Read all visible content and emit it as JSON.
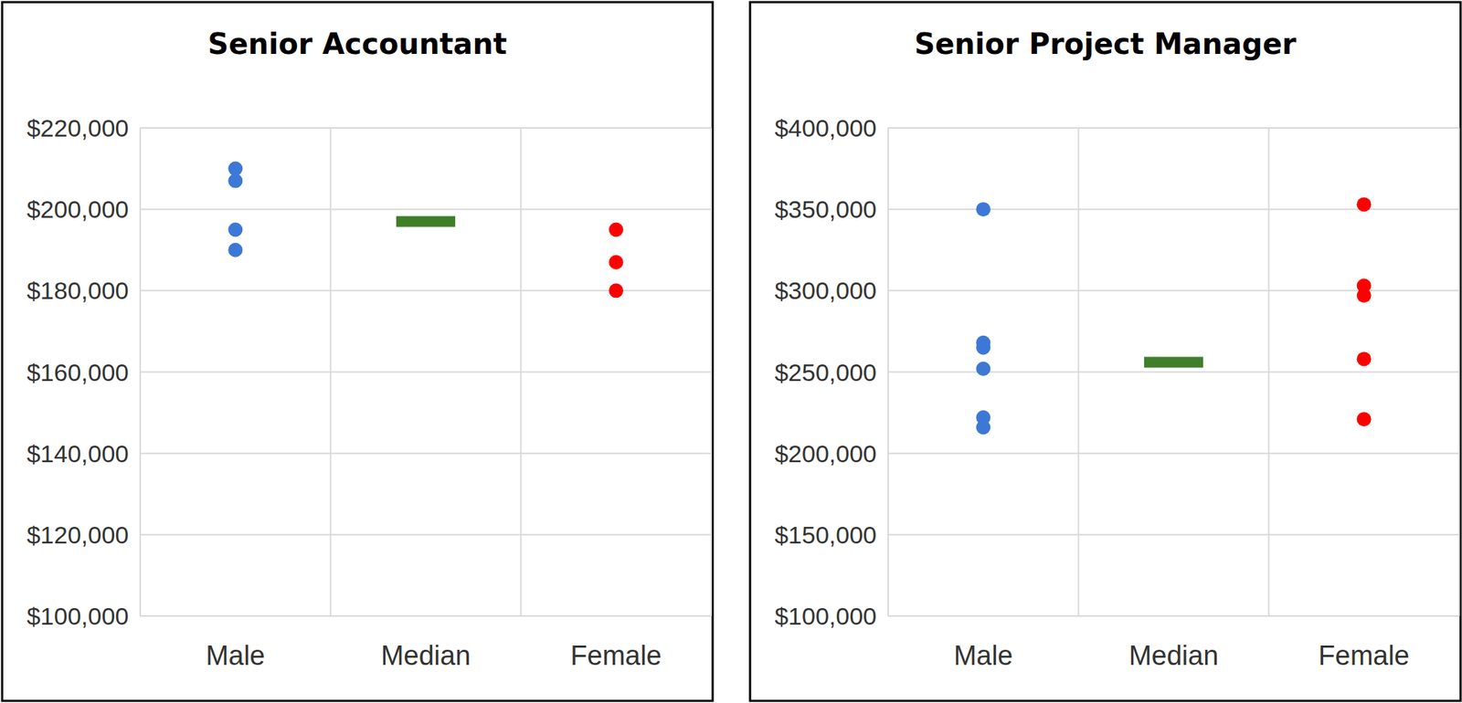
{
  "chart_data": [
    {
      "type": "strip",
      "title": "Senior Accountant",
      "series": [
        {
          "name": "Male",
          "color": "#3d78d6",
          "marker": "circle",
          "values": [
            210000,
            207000,
            195000,
            190000
          ]
        },
        {
          "name": "Median",
          "color": "#3f7f2a",
          "marker": "dash",
          "values": [
            197000
          ]
        },
        {
          "name": "Female",
          "color": "#ff0000",
          "marker": "circle",
          "values": [
            195000,
            187000,
            180000
          ]
        }
      ],
      "ylim": [
        100000,
        220000
      ],
      "yticks": [
        {
          "value": 100000,
          "label": "$100,000"
        },
        {
          "value": 120000,
          "label": "$120,000"
        },
        {
          "value": 140000,
          "label": "$140,000"
        },
        {
          "value": 160000,
          "label": "$160,000"
        },
        {
          "value": 180000,
          "label": "$180,000"
        },
        {
          "value": 200000,
          "label": "$200,000"
        },
        {
          "value": 220000,
          "label": "$220,000"
        }
      ],
      "grid": true
    },
    {
      "type": "strip",
      "title": "Senior Project Manager",
      "series": [
        {
          "name": "Male",
          "color": "#3d78d6",
          "marker": "circle",
          "values": [
            350000,
            268000,
            265000,
            252000,
            222000,
            216000
          ]
        },
        {
          "name": "Median",
          "color": "#3f7f2a",
          "marker": "dash",
          "values": [
            256000
          ]
        },
        {
          "name": "Female",
          "color": "#ff0000",
          "marker": "circle",
          "values": [
            353000,
            303000,
            297000,
            258000,
            221000
          ]
        }
      ],
      "ylim": [
        100000,
        400000
      ],
      "yticks": [
        {
          "value": 100000,
          "label": "$100,000"
        },
        {
          "value": 150000,
          "label": "$150,000"
        },
        {
          "value": 200000,
          "label": "$200,000"
        },
        {
          "value": 250000,
          "label": "$250,000"
        },
        {
          "value": 300000,
          "label": "$300,000"
        },
        {
          "value": 350000,
          "label": "$350,000"
        },
        {
          "value": 400000,
          "label": "$400,000"
        }
      ],
      "grid": true
    }
  ]
}
